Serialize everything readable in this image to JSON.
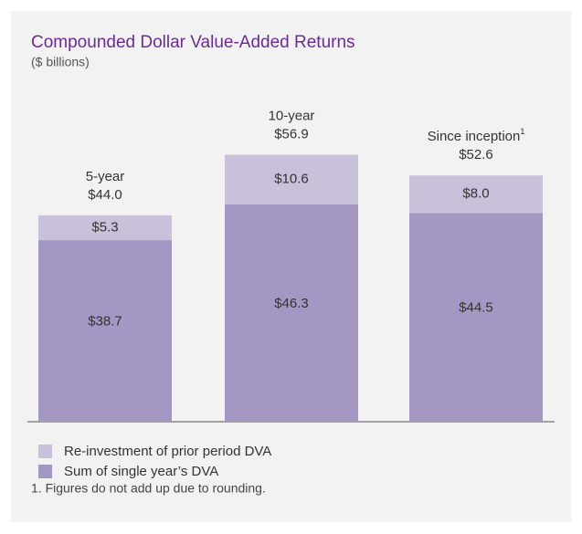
{
  "chart_data": {
    "type": "stacked_bar",
    "title": "Compounded Dollar Value-Added Returns",
    "subtitle": "($ billions)",
    "categories": [
      "5-year",
      "10-year",
      "Since inception"
    ],
    "category_notes": [
      null,
      null,
      "1"
    ],
    "totals": [
      44.0,
      56.9,
      52.6
    ],
    "total_labels": [
      "$44.0",
      "$56.9",
      "$52.6"
    ],
    "series": [
      {
        "name": "Sum of single year’s DVA",
        "color": "#a497c4",
        "values": [
          38.7,
          46.3,
          44.5
        ],
        "value_labels": [
          "$38.7",
          "$46.3",
          "$44.5"
        ]
      },
      {
        "name": "Re-investment of prior period DVA",
        "color": "#c9c1da",
        "values": [
          5.3,
          10.6,
          8.0
        ],
        "value_labels": [
          "$5.3",
          "$10.6",
          "$8.0"
        ]
      }
    ],
    "footnote": "1. Figures do not add up due to rounding."
  }
}
